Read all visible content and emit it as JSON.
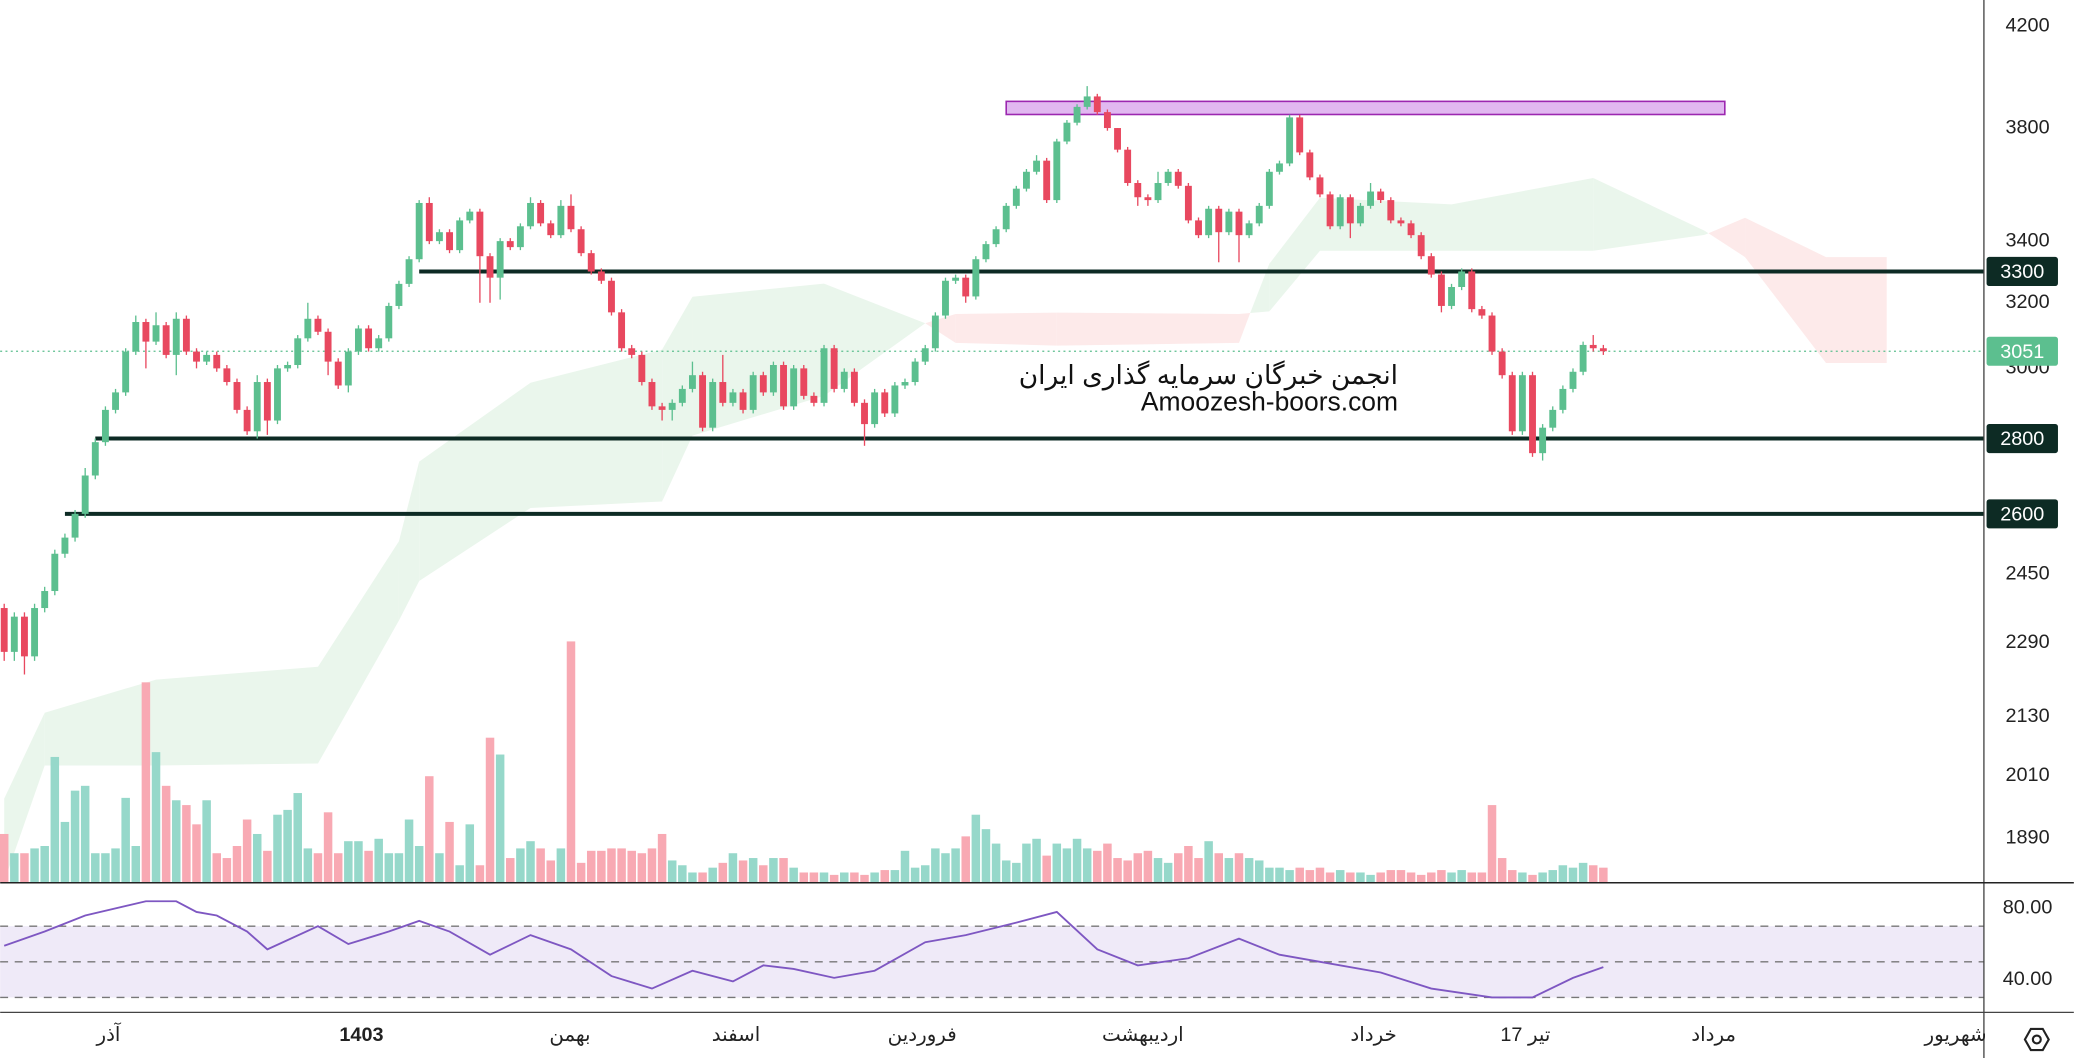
{
  "chart_data": {
    "type": "candlestick",
    "log": true,
    "grid": false,
    "up_color": "#5cbf8f",
    "down_color": "#e8485f",
    "volume_up_color": "#96d8ca",
    "volume_down_color": "#f8a9b3",
    "ylim": [
      1810,
      4310
    ],
    "yticks": [
      4200,
      3800,
      3400,
      3200,
      3000,
      2450,
      2290,
      2130,
      2010,
      1890
    ],
    "xlim": [
      -0.4,
      195.6
    ],
    "xticks": [
      {
        "value": 10.3,
        "label": "آذر"
      },
      {
        "value": 35.3,
        "label": "1403"
      },
      {
        "value": 55.9,
        "label": "بهمن"
      },
      {
        "value": 72.3,
        "label": "اسفند"
      },
      {
        "value": 90.7,
        "label": "فروردین"
      },
      {
        "value": 112.5,
        "label": "اردیبهشت"
      },
      {
        "value": 135.3,
        "label": "خرداد"
      },
      {
        "value": 150.3,
        "label": "17 تیر"
      },
      {
        "value": 168.9,
        "label": "مرداد"
      },
      {
        "value": 192.8,
        "label": "شهریور"
      }
    ],
    "open": [
      2370,
      2270,
      2350,
      2260,
      2370,
      2410,
      2500,
      2540,
      2600,
      2700,
      2790,
      2880,
      2930,
      3050,
      3140,
      3080,
      3130,
      3040,
      3150,
      3050,
      3020,
      3040,
      3000,
      2960,
      2880,
      2820,
      2960,
      2850,
      3000,
      3010,
      3090,
      3150,
      3110,
      3020,
      2950,
      3050,
      3120,
      3060,
      3090,
      3190,
      3260,
      3340,
      3530,
      3400,
      3430,
      3370,
      3470,
      3500,
      3350,
      3280,
      3400,
      3380,
      3450,
      3530,
      3460,
      3420,
      3520,
      3440,
      3360,
      3300,
      3270,
      3170,
      3060,
      3040,
      2960,
      2890,
      2880,
      2900,
      2940,
      2980,
      2830,
      2960,
      2900,
      2930,
      2880,
      2980,
      2930,
      3010,
      2890,
      3000,
      2920,
      2900,
      3060,
      2940,
      2990,
      2900,
      2840,
      2930,
      2870,
      2950,
      2960,
      3020,
      3060,
      3160,
      3270,
      3280,
      3220,
      3340,
      3390,
      3440,
      3520,
      3580,
      3640,
      3680,
      3540,
      3750,
      3820,
      3880,
      3920,
      3860,
      3800,
      3720,
      3600,
      3550,
      3540,
      3600,
      3640,
      3590,
      3470,
      3420,
      3510,
      3430,
      3500,
      3420,
      3460,
      3520,
      3640,
      3670,
      3840,
      3710,
      3620,
      3560,
      3450,
      3550,
      3460,
      3520,
      3570,
      3540,
      3470,
      3460,
      3420,
      3350,
      3290,
      3190,
      3250,
      3300,
      3180,
      3160,
      3050,
      2980,
      2820,
      2980,
      2760,
      2830,
      2880,
      2940,
      2990,
      3070,
      3060
    ],
    "high": [
      2380,
      2360,
      2360,
      2380,
      2420,
      2510,
      2550,
      2610,
      2720,
      2800,
      2890,
      2940,
      3060,
      3160,
      3150,
      3170,
      3140,
      3170,
      3160,
      3060,
      3050,
      3050,
      3010,
      2970,
      2890,
      2980,
      2970,
      3010,
      3020,
      3100,
      3200,
      3160,
      3120,
      3030,
      3060,
      3130,
      3130,
      3100,
      3200,
      3270,
      3350,
      3540,
      3550,
      3440,
      3440,
      3480,
      3510,
      3510,
      3360,
      3410,
      3410,
      3460,
      3550,
      3540,
      3470,
      3540,
      3560,
      3450,
      3370,
      3310,
      3280,
      3180,
      3070,
      3050,
      2970,
      2900,
      2910,
      2950,
      3020,
      2990,
      2970,
      3040,
      2940,
      2940,
      2990,
      2990,
      3020,
      3020,
      3010,
      3010,
      2930,
      3070,
      3070,
      3000,
      3000,
      2910,
      2940,
      2940,
      2960,
      2970,
      3030,
      3070,
      3170,
      3280,
      3290,
      3290,
      3350,
      3400,
      3450,
      3530,
      3590,
      3650,
      3700,
      3690,
      3760,
      3830,
      3890,
      3960,
      3930,
      3870,
      3800,
      3730,
      3610,
      3560,
      3640,
      3650,
      3650,
      3600,
      3480,
      3520,
      3520,
      3510,
      3510,
      3470,
      3530,
      3650,
      3680,
      3850,
      3850,
      3720,
      3630,
      3570,
      3560,
      3560,
      3530,
      3600,
      3580,
      3550,
      3480,
      3470,
      3430,
      3360,
      3300,
      3260,
      3310,
      3310,
      3190,
      3170,
      3060,
      2990,
      2990,
      2990,
      2840,
      2890,
      2950,
      3000,
      3080,
      3100,
      3070
    ],
    "low": [
      2250,
      2250,
      2220,
      2250,
      2360,
      2400,
      2490,
      2530,
      2590,
      2690,
      2780,
      2870,
      2920,
      3040,
      3000,
      3070,
      3030,
      2980,
      3040,
      3000,
      3010,
      2990,
      2950,
      2870,
      2810,
      2800,
      2810,
      2840,
      2990,
      3000,
      3080,
      3100,
      2980,
      2940,
      2930,
      3040,
      3050,
      3050,
      3080,
      3180,
      3250,
      3330,
      3390,
      3390,
      3360,
      3360,
      3460,
      3200,
      3200,
      3210,
      3370,
      3370,
      3440,
      3450,
      3410,
      3410,
      3430,
      3350,
      3290,
      3260,
      3160,
      3050,
      3030,
      2950,
      2880,
      2850,
      2850,
      2890,
      2930,
      2820,
      2820,
      2890,
      2890,
      2870,
      2870,
      2920,
      2920,
      2880,
      2880,
      2910,
      2890,
      2890,
      2930,
      2930,
      2890,
      2780,
      2830,
      2860,
      2860,
      2940,
      2950,
      3010,
      3050,
      3150,
      3260,
      3200,
      3210,
      3330,
      3380,
      3430,
      3510,
      3570,
      3630,
      3530,
      3530,
      3740,
      3810,
      3870,
      3850,
      3790,
      3710,
      3590,
      3520,
      3520,
      3530,
      3590,
      3580,
      3460,
      3410,
      3410,
      3330,
      3420,
      3330,
      3410,
      3450,
      3510,
      3630,
      3660,
      3700,
      3610,
      3550,
      3440,
      3440,
      3410,
      3450,
      3510,
      3530,
      3460,
      3450,
      3410,
      3340,
      3280,
      3170,
      3180,
      3240,
      3170,
      3150,
      3040,
      2970,
      2810,
      2810,
      2750,
      2740,
      2820,
      2870,
      2930,
      2980,
      3050,
      3040
    ],
    "close": [
      2270,
      2350,
      2260,
      2370,
      2410,
      2500,
      2540,
      2600,
      2700,
      2790,
      2880,
      2930,
      3050,
      3140,
      3080,
      3130,
      3040,
      3150,
      3050,
      3020,
      3040,
      3000,
      2960,
      2880,
      2820,
      2960,
      2850,
      3000,
      3010,
      3090,
      3150,
      3110,
      3020,
      2950,
      3050,
      3120,
      3060,
      3090,
      3190,
      3260,
      3340,
      3530,
      3400,
      3430,
      3370,
      3470,
      3500,
      3350,
      3280,
      3400,
      3380,
      3450,
      3530,
      3460,
      3420,
      3520,
      3440,
      3360,
      3300,
      3270,
      3170,
      3060,
      3040,
      2960,
      2890,
      2880,
      2900,
      2940,
      2980,
      2830,
      2960,
      2900,
      2930,
      2880,
      2980,
      2930,
      3010,
      2890,
      3000,
      2920,
      2900,
      3060,
      2940,
      2990,
      2900,
      2840,
      2930,
      2870,
      2950,
      2960,
      3020,
      3060,
      3160,
      3270,
      3280,
      3220,
      3340,
      3390,
      3440,
      3520,
      3580,
      3640,
      3680,
      3540,
      3750,
      3820,
      3880,
      3920,
      3860,
      3800,
      3720,
      3600,
      3550,
      3540,
      3600,
      3640,
      3590,
      3470,
      3420,
      3510,
      3430,
      3500,
      3420,
      3460,
      3520,
      3640,
      3670,
      3840,
      3710,
      3620,
      3560,
      3450,
      3550,
      3460,
      3520,
      3570,
      3540,
      3470,
      3460,
      3420,
      3350,
      3290,
      3190,
      3250,
      3300,
      3180,
      3160,
      3050,
      2980,
      2820,
      2980,
      2760,
      2830,
      2880,
      2940,
      2990,
      3070,
      3060,
      3051
    ],
    "volume": [
      20,
      12,
      12,
      14,
      15,
      52,
      25,
      38,
      40,
      12,
      12,
      14,
      35,
      15,
      83,
      54,
      40,
      34,
      32,
      24,
      34,
      12,
      10,
      15,
      26,
      20,
      13,
      28,
      30,
      37,
      14,
      12,
      29,
      12,
      17,
      17,
      13,
      18,
      12,
      12,
      26,
      15,
      44,
      12,
      25,
      7,
      24,
      7,
      60,
      53,
      10,
      14,
      17,
      14,
      9,
      14,
      100,
      8,
      13,
      13,
      14,
      14,
      13,
      12,
      14,
      20,
      9,
      7,
      4,
      4,
      6,
      8,
      12,
      9,
      10,
      7,
      10,
      10,
      6,
      4,
      4,
      4,
      3,
      4,
      4,
      3,
      4,
      5,
      5,
      13,
      6,
      7,
      14,
      12,
      14,
      19,
      28,
      22,
      16,
      9,
      8,
      16,
      18,
      11,
      16,
      14,
      18,
      14,
      13,
      16,
      10,
      9,
      12,
      13,
      10,
      8,
      12,
      15,
      10,
      17,
      12,
      10,
      12,
      10,
      9,
      6,
      6,
      5,
      6,
      5,
      6,
      4,
      5,
      4,
      4,
      3,
      4,
      5,
      5,
      4,
      3,
      4,
      5,
      4,
      5,
      4,
      4,
      32,
      10,
      5,
      4,
      3,
      4,
      5,
      7,
      6,
      8,
      7,
      6
    ],
    "vlim": [
      0,
      100
    ],
    "levels": [
      {
        "value": 3300,
        "start": 41
      },
      {
        "value": 2800,
        "start": 9
      },
      {
        "value": 2600,
        "start": 6
      }
    ],
    "level_color": "#0d2b24",
    "last_price": 3051,
    "zone": {
      "x": [
        99,
        170
      ],
      "y": [
        3851,
        3901
      ],
      "color": "#e1b8f0",
      "border": "#9c27b0"
    },
    "cloud": {
      "x": [
        0,
        4,
        15,
        31,
        39,
        41,
        52,
        65,
        68,
        81,
        91,
        94,
        104,
        122,
        125,
        130,
        143,
        157,
        168,
        172,
        180,
        186
      ],
      "span_a": [
        1965,
        2138,
        2209,
        2237,
        2531,
        2737,
        2958,
        3056,
        3219,
        3261,
        3136,
        3076,
        3068,
        3076,
        3325,
        3548,
        3525,
        3618,
        3435,
        3347,
        3016,
        3016
      ],
      "span_b": [
        1811,
        2030,
        2030,
        2034,
        2341,
        2434,
        2615,
        2632,
        2808,
        2920,
        3136,
        3165,
        3169,
        3165,
        3173,
        3368,
        3368,
        3368,
        3421,
        3479,
        3347,
        3347
      ],
      "up_color": "#eaf6ec",
      "down_color": "#fdeaea"
    },
    "watermark": [
      "انجمن خبرگان سرمایه گذاری ایران",
      "Amoozesh-boors.com"
    ],
    "rsi": {
      "x": [
        0,
        4,
        8,
        14,
        17,
        19,
        21,
        24,
        26,
        31,
        34,
        38,
        41,
        44,
        48,
        52,
        56,
        60,
        64,
        68,
        72,
        75,
        78,
        82,
        86,
        91,
        95,
        100,
        104,
        108,
        112,
        117,
        122,
        126,
        130,
        136,
        141,
        147,
        151,
        155,
        158
      ],
      "values": [
        59,
        67,
        76,
        84,
        84,
        78,
        76,
        67,
        57,
        70,
        60,
        67,
        73,
        67,
        54,
        65,
        57,
        42,
        35,
        45,
        39,
        48,
        46,
        41,
        45,
        61,
        65,
        72,
        78,
        57,
        48,
        52,
        63,
        54,
        50,
        44,
        35,
        30,
        30,
        41,
        47
      ],
      "color": "#7e57c2",
      "ylim": [
        22,
        94
      ],
      "yticks": [
        {
          "value": 80,
          "label": "80.00"
        },
        {
          "value": 40,
          "label": "40.00"
        }
      ],
      "levels": [
        70,
        50,
        30
      ],
      "band_color": "#efeaf8"
    }
  }
}
